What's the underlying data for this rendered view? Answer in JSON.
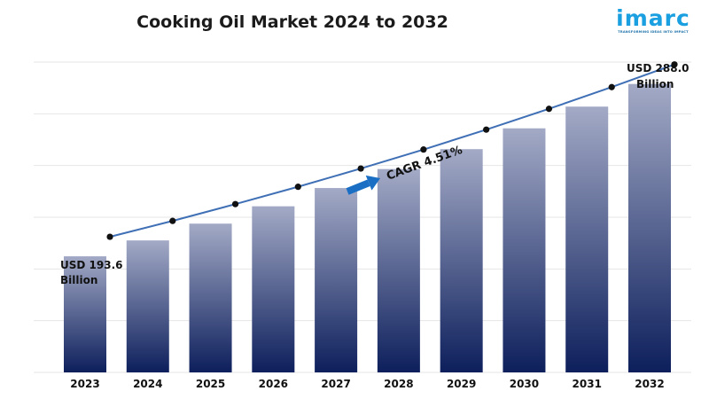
{
  "title": "Cooking Oil Market 2024 to 2032",
  "logo": {
    "word": "imarc",
    "tagline": "TRANSFORMING IDEAS INTO IMPACT",
    "color": "#1a9fe0"
  },
  "chart_data": {
    "type": "bar",
    "title": "Cooking Oil Market 2024 to 2032",
    "xlabel": "",
    "ylabel": "",
    "categories": [
      "2023",
      "2024",
      "2025",
      "2026",
      "2027",
      "2028",
      "2029",
      "2030",
      "2031",
      "2032"
    ],
    "series": [
      {
        "values": [
          193.6,
          202.3,
          211.5,
          221.0,
          231.0,
          241.4,
          252.3,
          263.7,
          275.6,
          288.0
        ]
      }
    ],
    "trend_line": true,
    "ylim": [
      130,
      300
    ],
    "grid": true,
    "annotations": {
      "start_value": "USD 193.6",
      "start_unit": "Billion",
      "end_value": "USD 288.0",
      "end_unit": "Billion",
      "cagr": "CAGR 4.51%"
    },
    "colors": {
      "bar_top": "#a3aac6",
      "bar_bottom": "#0d1f5c",
      "line": "#3f6fb5",
      "marker": "#111111",
      "arrow": "#1a6fc4"
    }
  }
}
